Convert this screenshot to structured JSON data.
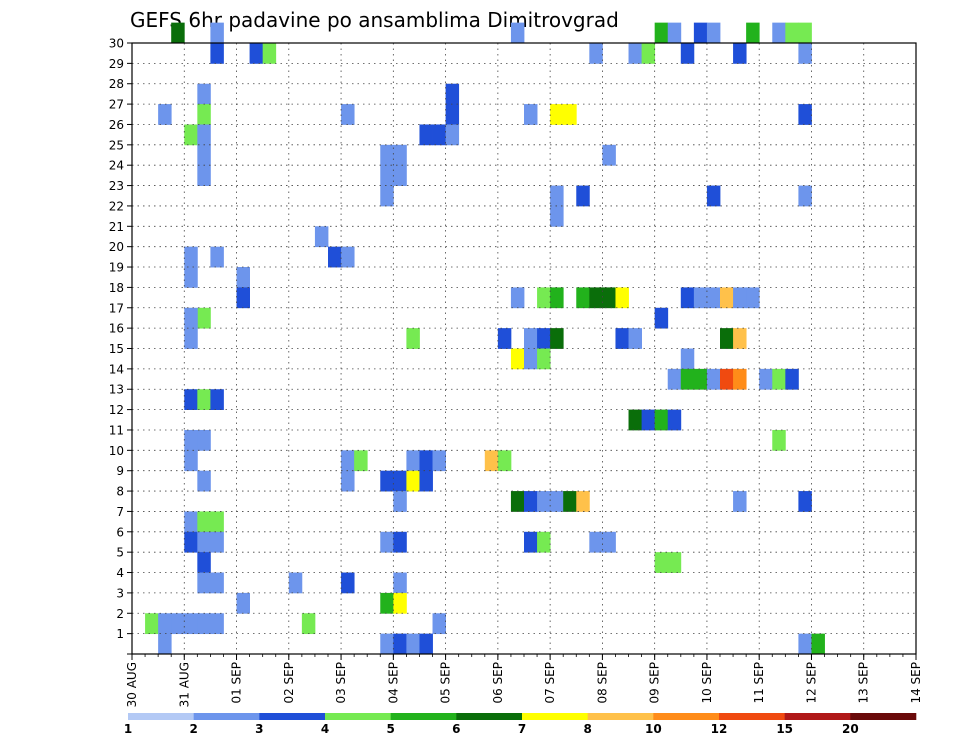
{
  "chart_data": {
    "type": "heatmap",
    "title": "GEFS 6hr padavine po ansamblima Dimitrovgrad",
    "x_tick_labels": [
      "30 AUG",
      "31 AUG",
      "01 SEP",
      "02 SEP",
      "03 SEP",
      "04 SEP",
      "05 SEP",
      "06 SEP",
      "07 SEP",
      "08 SEP",
      "09 SEP",
      "10 SEP",
      "11 SEP",
      "12 SEP",
      "13 SEP",
      "14 SEP"
    ],
    "xlim": [
      "30 AUG 00Z",
      "14 SEP 00Z"
    ],
    "time_step_hours": 6,
    "y_tick_labels": [
      "1",
      "2",
      "3",
      "4",
      "5",
      "6",
      "7",
      "8",
      "9",
      "10",
      "11",
      "12",
      "13",
      "14",
      "15",
      "16",
      "17",
      "18",
      "19",
      "20",
      "21",
      "22",
      "23",
      "24",
      "25",
      "26",
      "27",
      "28",
      "29",
      "30"
    ],
    "ylim": [
      0,
      30
    ],
    "grid": true,
    "colorbar": {
      "levels": [
        "1",
        "2",
        "3",
        "4",
        "5",
        "6",
        "7",
        "8",
        "10",
        "12",
        "15",
        "20"
      ],
      "colors": [
        "#b3c9f5",
        "#6d95ec",
        "#1f4fd8",
        "#76ea52",
        "#22b21c",
        "#0a6e0a",
        "#ffff00",
        "#ffc14a",
        "#ff8c19",
        "#f04a10",
        "#b01818",
        "#6a0a0a"
      ]
    },
    "cells": [
      [
        3,
        30,
        5
      ],
      [
        6,
        30,
        1
      ],
      [
        29,
        30,
        1
      ],
      [
        40,
        30,
        4
      ],
      [
        41,
        30,
        1
      ],
      [
        43,
        30,
        2
      ],
      [
        44,
        30,
        1
      ],
      [
        47,
        30,
        4
      ],
      [
        49,
        30,
        1
      ],
      [
        50,
        30,
        3
      ],
      [
        51,
        30,
        3
      ],
      [
        6,
        29,
        2
      ],
      [
        9,
        29,
        2
      ],
      [
        10,
        29,
        3
      ],
      [
        35,
        29,
        1
      ],
      [
        38,
        29,
        1
      ],
      [
        39,
        29,
        3
      ],
      [
        42,
        29,
        2
      ],
      [
        46,
        29,
        2
      ],
      [
        51,
        29,
        1
      ],
      [
        5,
        27,
        1
      ],
      [
        24,
        27,
        2
      ],
      [
        2,
        26,
        1
      ],
      [
        5,
        26,
        3
      ],
      [
        16,
        26,
        1
      ],
      [
        24,
        26,
        2
      ],
      [
        30,
        26,
        1
      ],
      [
        32,
        26,
        6
      ],
      [
        33,
        26,
        6
      ],
      [
        51,
        26,
        2
      ],
      [
        4,
        25,
        3
      ],
      [
        5,
        25,
        1
      ],
      [
        22,
        25,
        2
      ],
      [
        23,
        25,
        2
      ],
      [
        24,
        25,
        1
      ],
      [
        5,
        24,
        1
      ],
      [
        19,
        24,
        1
      ],
      [
        20,
        24,
        1
      ],
      [
        36,
        24,
        1
      ],
      [
        5,
        23,
        1
      ],
      [
        19,
        23,
        1
      ],
      [
        20,
        23,
        1
      ],
      [
        19,
        22,
        1
      ],
      [
        32,
        22,
        1
      ],
      [
        34,
        22,
        2
      ],
      [
        44,
        22,
        2
      ],
      [
        51,
        22,
        1
      ],
      [
        32,
        21,
        1
      ],
      [
        14,
        20,
        1
      ],
      [
        4,
        19,
        1
      ],
      [
        6,
        19,
        1
      ],
      [
        15,
        19,
        2
      ],
      [
        16,
        19,
        1
      ],
      [
        4,
        18,
        1
      ],
      [
        8,
        18,
        1
      ],
      [
        8,
        17,
        2
      ],
      [
        29,
        17,
        1
      ],
      [
        31,
        17,
        3
      ],
      [
        32,
        17,
        4
      ],
      [
        34,
        17,
        4
      ],
      [
        35,
        17,
        5
      ],
      [
        36,
        17,
        5
      ],
      [
        37,
        17,
        6
      ],
      [
        42,
        17,
        2
      ],
      [
        43,
        17,
        1
      ],
      [
        44,
        17,
        1
      ],
      [
        45,
        17,
        7
      ],
      [
        46,
        17,
        1
      ],
      [
        47,
        17,
        1
      ],
      [
        5,
        16,
        3
      ],
      [
        4,
        16,
        1
      ],
      [
        40,
        16,
        2
      ],
      [
        4,
        15,
        1
      ],
      [
        21,
        15,
        3
      ],
      [
        28,
        15,
        2
      ],
      [
        30,
        15,
        1
      ],
      [
        31,
        15,
        2
      ],
      [
        32,
        15,
        5
      ],
      [
        37,
        15,
        2
      ],
      [
        38,
        15,
        1
      ],
      [
        45,
        15,
        5
      ],
      [
        46,
        15,
        7
      ],
      [
        29,
        14,
        6
      ],
      [
        30,
        14,
        1
      ],
      [
        31,
        14,
        3
      ],
      [
        42,
        14,
        1
      ],
      [
        41,
        13,
        1
      ],
      [
        42,
        13,
        4
      ],
      [
        43,
        13,
        4
      ],
      [
        44,
        13,
        1
      ],
      [
        45,
        13,
        9
      ],
      [
        46,
        13,
        8
      ],
      [
        48,
        13,
        1
      ],
      [
        49,
        13,
        3
      ],
      [
        50,
        13,
        2
      ],
      [
        4,
        12,
        2
      ],
      [
        5,
        12,
        3
      ],
      [
        6,
        12,
        2
      ],
      [
        38,
        11,
        5
      ],
      [
        39,
        11,
        2
      ],
      [
        40,
        11,
        4
      ],
      [
        41,
        11,
        2
      ],
      [
        4,
        10,
        1
      ],
      [
        5,
        10,
        1
      ],
      [
        49,
        10,
        3
      ],
      [
        4,
        9,
        1
      ],
      [
        16,
        9,
        1
      ],
      [
        17,
        9,
        3
      ],
      [
        21,
        9,
        1
      ],
      [
        22,
        9,
        2
      ],
      [
        23,
        9,
        1
      ],
      [
        27,
        9,
        7
      ],
      [
        28,
        9,
        3
      ],
      [
        5,
        8,
        1
      ],
      [
        16,
        8,
        1
      ],
      [
        19,
        8,
        2
      ],
      [
        20,
        8,
        2
      ],
      [
        21,
        8,
        6
      ],
      [
        22,
        8,
        2
      ],
      [
        20,
        7,
        1
      ],
      [
        29,
        7,
        5
      ],
      [
        30,
        7,
        2
      ],
      [
        31,
        7,
        1
      ],
      [
        32,
        7,
        1
      ],
      [
        33,
        7,
        5
      ],
      [
        34,
        7,
        7
      ],
      [
        46,
        7,
        1
      ],
      [
        51,
        7,
        2
      ],
      [
        4,
        6,
        1
      ],
      [
        5,
        6,
        3
      ],
      [
        6,
        6,
        3
      ],
      [
        4,
        5,
        2
      ],
      [
        5,
        5,
        1
      ],
      [
        6,
        5,
        1
      ],
      [
        19,
        5,
        1
      ],
      [
        20,
        5,
        2
      ],
      [
        30,
        5,
        2
      ],
      [
        31,
        5,
        3
      ],
      [
        35,
        5,
        1
      ],
      [
        36,
        5,
        1
      ],
      [
        5,
        4,
        2
      ],
      [
        40,
        4,
        3
      ],
      [
        41,
        4,
        3
      ],
      [
        5,
        3,
        1
      ],
      [
        6,
        3,
        1
      ],
      [
        12,
        3,
        1
      ],
      [
        16,
        3,
        2
      ],
      [
        20,
        3,
        1
      ],
      [
        8,
        2,
        1
      ],
      [
        19,
        2,
        4
      ],
      [
        20,
        2,
        6
      ],
      [
        1,
        1,
        3
      ],
      [
        2,
        1,
        1
      ],
      [
        3,
        1,
        1
      ],
      [
        4,
        1,
        1
      ],
      [
        5,
        1,
        1
      ],
      [
        6,
        1,
        1
      ],
      [
        13,
        1,
        3
      ],
      [
        23,
        1,
        1
      ],
      [
        2,
        0,
        1
      ],
      [
        19,
        0,
        1
      ],
      [
        20,
        0,
        2
      ],
      [
        21,
        0,
        1
      ],
      [
        22,
        0,
        2
      ],
      [
        51,
        0,
        1
      ],
      [
        52,
        0,
        4
      ]
    ]
  }
}
